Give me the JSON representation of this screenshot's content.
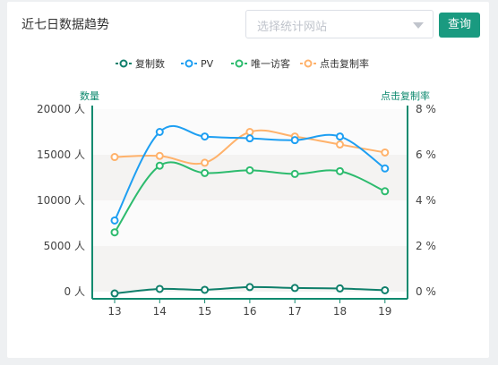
{
  "header": {
    "title": "近七日数据趋势",
    "site_placeholder": "选择统计网站",
    "query_label": "查询"
  },
  "colors": {
    "accent": "#1a9a80",
    "axis": "#0f8a6f",
    "series": [
      "#0f7f6b",
      "#1e9ff2",
      "#2dbb6e",
      "#ffb26b"
    ]
  },
  "chart_data": {
    "type": "line",
    "x": [
      "13",
      "14",
      "15",
      "16",
      "17",
      "18",
      "19"
    ],
    "y_left": {
      "label": "数量",
      "min": 0,
      "max": 20000,
      "ticks": [
        "0 人",
        "5000 人",
        "10000 人",
        "15000 人",
        "20000 人"
      ]
    },
    "y_right": {
      "label": "点击复制率",
      "min": 0,
      "max": 8,
      "ticks": [
        "0 %",
        "2 %",
        "4 %",
        "6 %",
        "8 %"
      ]
    },
    "series": [
      {
        "name": "复制数",
        "axis": "left",
        "values": [
          -200,
          300,
          200,
          500,
          400,
          350,
          150
        ]
      },
      {
        "name": "PV",
        "axis": "left",
        "values": [
          7800,
          17500,
          17000,
          16800,
          16600,
          17000,
          13500
        ]
      },
      {
        "name": "唯一访客",
        "axis": "left",
        "values": [
          6500,
          13800,
          13000,
          13300,
          12900,
          13200,
          11000
        ]
      },
      {
        "name": "点击复制率",
        "axis": "right",
        "values": [
          5.9,
          5.95,
          5.65,
          7.0,
          6.8,
          6.45,
          6.1
        ]
      }
    ],
    "legend_position": "top-center",
    "grid": "banded"
  }
}
